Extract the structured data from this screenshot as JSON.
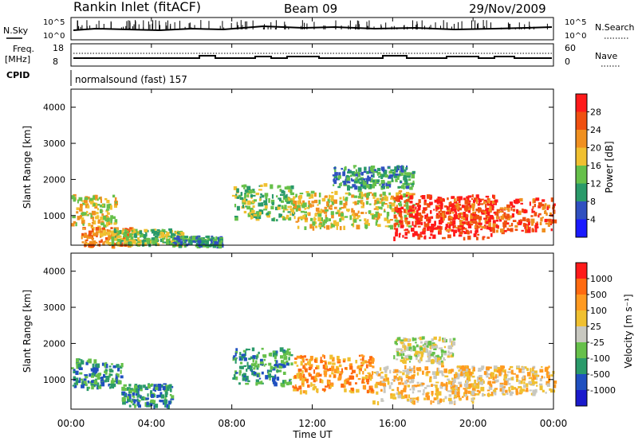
{
  "header": {
    "station": "Rankin Inlet (fitACF)",
    "beam": "Beam 09",
    "date": "29/Nov/2009"
  },
  "labels": {
    "nsky": "N.Sky",
    "nsearch": "N.Search",
    "freq": "Freq.",
    "freq_unit": "[MHz]",
    "nave": "Nave",
    "cpid": "CPID",
    "cpid_value": "normalsound (fast) 157"
  },
  "noise_axis": {
    "left_top": "10^5",
    "left_bottom": "10^0",
    "right_top": "10^5",
    "right_bottom": "10^0"
  },
  "freq_axis": {
    "left_top": "18",
    "left_bottom": "8",
    "right_top": "60",
    "right_bottom": "0"
  },
  "colors": {
    "power": [
      "#1a1aff",
      "#3050c0",
      "#2a9a6a",
      "#66c04a",
      "#f0c030",
      "#f09020",
      "#f05010",
      "#ff1a1a"
    ],
    "velocity": [
      "#ff1a1a",
      "#ff6a10",
      "#ff9a20",
      "#f0c030",
      "#c8c8c0",
      "#66c04a",
      "#2a9a6a",
      "#2050c0",
      "#1a1acc"
    ]
  },
  "chart_data": [
    {
      "type": "heatmap",
      "name": "Power",
      "ylabel": "Slant Range [km]",
      "ylim": [
        180,
        4500
      ],
      "yticks": [
        "1000",
        "2000",
        "3000",
        "4000"
      ],
      "xlim": [
        0,
        24
      ],
      "xticks": [
        "00:00",
        "04:00",
        "08:00",
        "12:00",
        "16:00",
        "20:00",
        "00:00"
      ],
      "colorbar_label": "Power [dB]",
      "colorbar_ticks": [
        "4",
        "8",
        "12",
        "16",
        "20",
        "24",
        "28"
      ],
      "regions": [
        {
          "t": [
            0,
            2.2
          ],
          "r": [
            700,
            1600
          ],
          "level": 4
        },
        {
          "t": [
            0.5,
            3.0
          ],
          "r": [
            200,
            700
          ],
          "level": 5
        },
        {
          "t": [
            2.0,
            5.5
          ],
          "r": [
            220,
            650
          ],
          "level": 3
        },
        {
          "t": [
            5.0,
            7.5
          ],
          "r": [
            200,
            450
          ],
          "level": 2
        },
        {
          "t": [
            8.0,
            11.0
          ],
          "r": [
            900,
            1900
          ],
          "level": 3
        },
        {
          "t": [
            11.0,
            17.0
          ],
          "r": [
            700,
            1700
          ],
          "level": 4
        },
        {
          "t": [
            16.0,
            21.0
          ],
          "r": [
            400,
            1600
          ],
          "level": 7
        },
        {
          "t": [
            18.0,
            24.0
          ],
          "r": [
            600,
            1500
          ],
          "level": 6
        },
        {
          "t": [
            13.0,
            17.0
          ],
          "r": [
            1800,
            2400
          ],
          "level": 2
        }
      ]
    },
    {
      "type": "heatmap",
      "name": "Velocity",
      "ylabel": "Slant Range [km]",
      "ylim": [
        180,
        4500
      ],
      "yticks": [
        "1000",
        "2000",
        "3000",
        "4000"
      ],
      "xlim": [
        0,
        24
      ],
      "xticks": [
        "00:00",
        "04:00",
        "08:00",
        "12:00",
        "16:00",
        "20:00",
        "00:00"
      ],
      "xlabel": "Time UT",
      "colorbar_label": "Velocity [m s⁻¹]",
      "colorbar_ticks": [
        "1000",
        "500",
        "100",
        "25",
        "-25",
        "-100",
        "-500",
        "-1000"
      ],
      "regions": [
        {
          "t": [
            0,
            2.5
          ],
          "r": [
            800,
            1600
          ],
          "level": 6
        },
        {
          "t": [
            2.5,
            5.0
          ],
          "r": [
            300,
            900
          ],
          "level": 6
        },
        {
          "t": [
            8.0,
            11.0
          ],
          "r": [
            900,
            1900
          ],
          "level": 6
        },
        {
          "t": [
            11.0,
            15.0
          ],
          "r": [
            700,
            1700
          ],
          "level": 2
        },
        {
          "t": [
            15.0,
            20.0
          ],
          "r": [
            400,
            1400
          ],
          "level": 3
        },
        {
          "t": [
            16.0,
            19.0
          ],
          "r": [
            1500,
            2200
          ],
          "level": 4
        },
        {
          "t": [
            19.0,
            24.0
          ],
          "r": [
            600,
            1400
          ],
          "level": 3
        }
      ]
    }
  ]
}
